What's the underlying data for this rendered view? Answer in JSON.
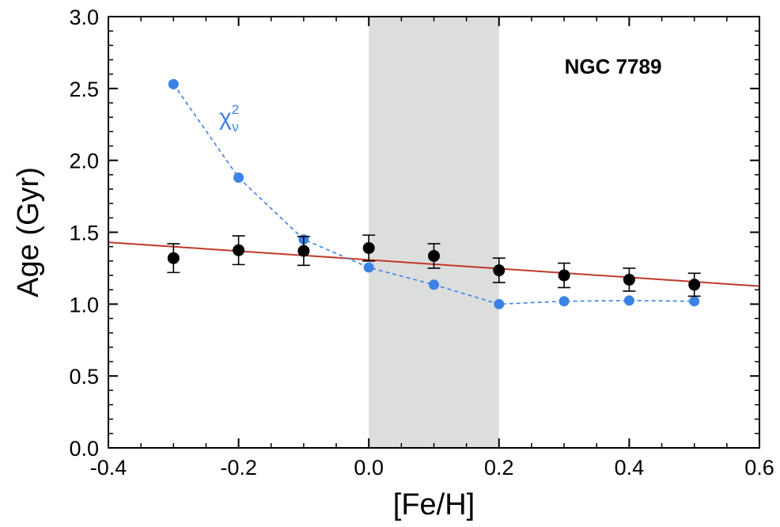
{
  "chart_data": {
    "type": "scatter",
    "title": "",
    "xlabel": "[Fe/H]",
    "ylabel": "Age (Gyr)",
    "xlim": [
      -0.4,
      0.6
    ],
    "ylim": [
      0.0,
      3.0
    ],
    "x_ticks": [
      -0.4,
      -0.2,
      0.0,
      0.2,
      0.4,
      0.6
    ],
    "y_ticks": [
      0.0,
      0.5,
      1.0,
      1.5,
      2.0,
      2.5,
      3.0
    ],
    "x_tick_labels": [
      "-0.4",
      "-0.2",
      "0.0",
      "0.2",
      "0.4",
      "0.6"
    ],
    "y_tick_labels": [
      "0.0",
      "0.5",
      "1.0",
      "1.5",
      "2.0",
      "2.5",
      "3.0"
    ],
    "shaded_region": {
      "x_range": [
        0.0,
        0.2
      ],
      "color": "#dcdddd"
    },
    "annotation": "NGC 7789",
    "series": [
      {
        "name": "Age",
        "color": "#000000",
        "style": "points-with-errorbars",
        "x": [
          -0.3,
          -0.2,
          -0.1,
          0.0,
          0.1,
          0.2,
          0.3,
          0.4,
          0.5
        ],
        "y": [
          1.32,
          1.375,
          1.37,
          1.39,
          1.335,
          1.235,
          1.2,
          1.17,
          1.135
        ],
        "yerr": [
          0.1,
          0.1,
          0.1,
          0.09,
          0.085,
          0.085,
          0.085,
          0.08,
          0.08
        ]
      },
      {
        "name": "chi-squared",
        "label_main": "χ",
        "label_sup": "2",
        "label_sub": "ν",
        "color": "#3b82e6",
        "style": "dashed-line-points",
        "x": [
          -0.3,
          -0.2,
          -0.1,
          0.0,
          0.1,
          0.2,
          0.3,
          0.4,
          0.5
        ],
        "y": [
          2.53,
          1.88,
          1.45,
          1.255,
          1.135,
          1.0,
          1.02,
          1.025,
          1.02
        ]
      },
      {
        "name": "Linear fit",
        "color": "#c0392b",
        "style": "line",
        "x": [
          -0.4,
          0.6
        ],
        "y": [
          1.43,
          1.125
        ]
      }
    ]
  }
}
